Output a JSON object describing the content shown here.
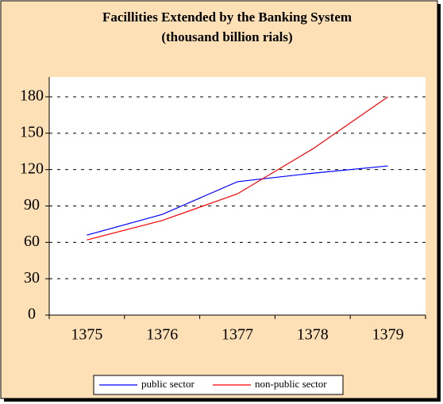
{
  "chart_data": {
    "type": "line",
    "title": "Facillities Extended by the Banking System",
    "subtitle": "(thousand billion rials)",
    "categories": [
      "1375",
      "1376",
      "1377",
      "1378",
      "1379"
    ],
    "series": [
      {
        "name": "public sector",
        "color": "#0000ff",
        "values": [
          66,
          83,
          110,
          117,
          123
        ]
      },
      {
        "name": "non-public sector",
        "color": "#ff0000",
        "values": [
          62,
          78,
          100,
          137,
          180
        ]
      }
    ],
    "ylim": [
      0,
      180
    ],
    "yticks": [
      0,
      30,
      60,
      90,
      120,
      150,
      180
    ],
    "grid": true,
    "legend": "bottom"
  }
}
